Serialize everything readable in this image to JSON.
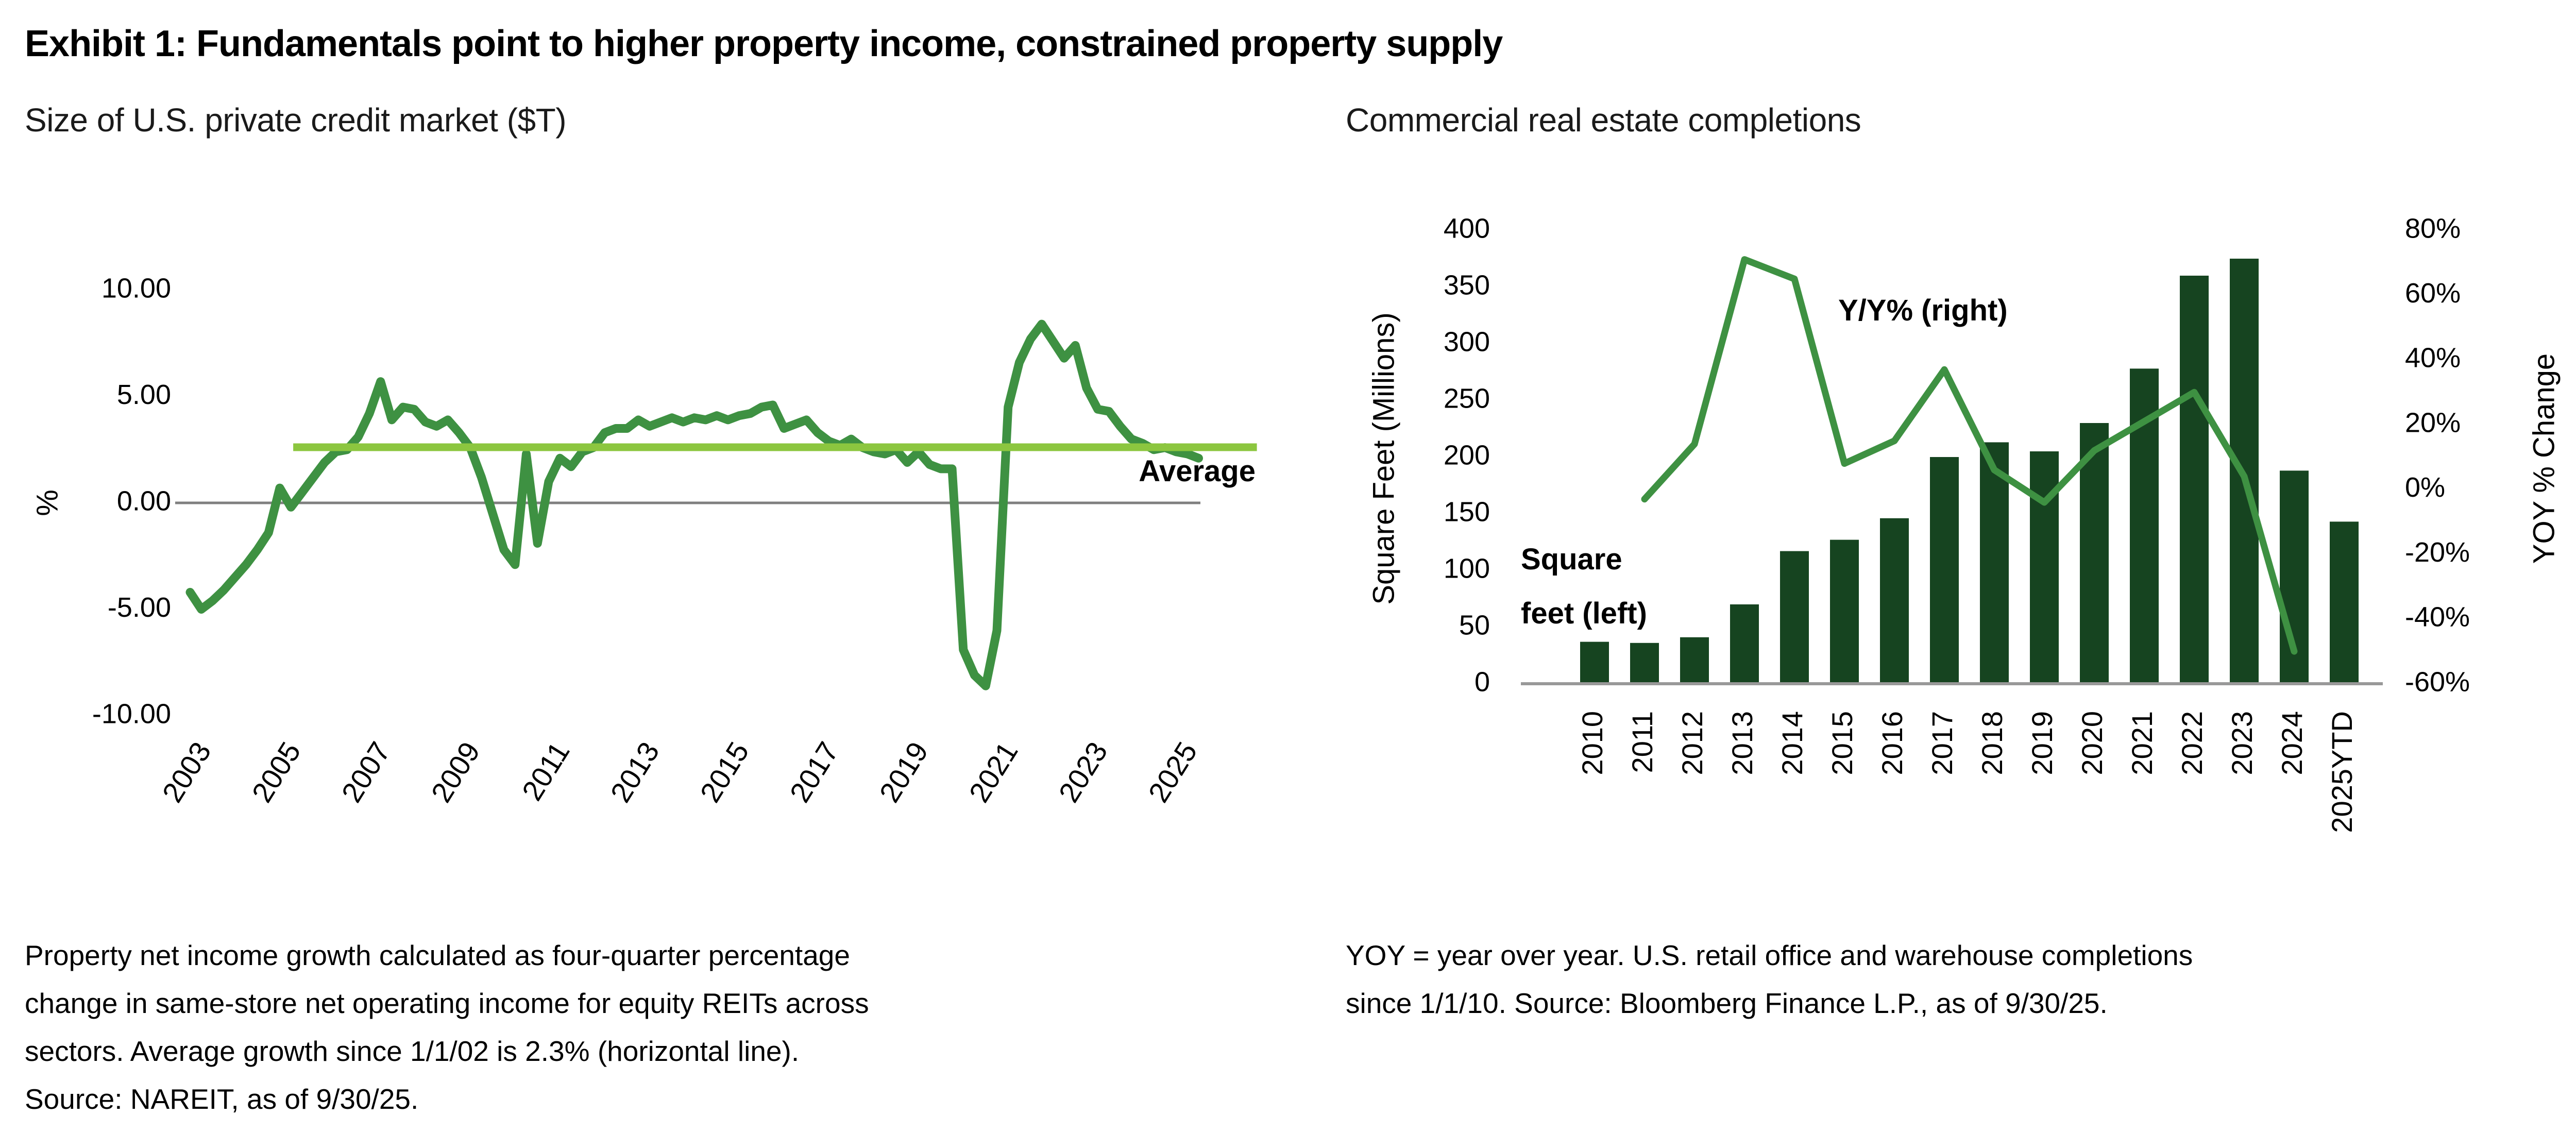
{
  "title": "Exhibit 1: Fundamentals point to higher property income, constrained property supply",
  "left_chart": {
    "subtitle": "Size of U.S. private credit market ($T)"
  },
  "right_chart": {
    "subtitle": "Commercial real estate completions"
  },
  "footnotes": {
    "left": [
      "Property net income growth calculated as four-quarter percentage",
      "change in same-store net operating income for equity REITs across",
      "sectors. Average growth since 1/1/02 is 2.3% (horizontal line).",
      "Source: NAREIT, as of 9/30/25."
    ],
    "right": [
      "YOY = year over year. U.S. retail office and warehouse completions",
      "since 1/1/10. Source: Bloomberg Finance L.P., as of 9/30/25."
    ]
  },
  "chart_data": [
    {
      "type": "line",
      "title": "Size of U.S. private credit market ($T)",
      "ylabel": "%",
      "ylim": [
        -10,
        10
      ],
      "grid": false,
      "y_ticks": {
        "labels": [
          "10.00",
          "5.00",
          "0.00",
          "-5.00",
          "-10.00"
        ],
        "values": [
          10,
          5,
          0,
          -5,
          -10
        ]
      },
      "x_ticks": [
        2003,
        2005,
        2007,
        2009,
        2011,
        2013,
        2015,
        2017,
        2019,
        2021,
        2023,
        2025
      ],
      "x_start": 2003.0,
      "x_step_years": 0.25,
      "zero_line": true,
      "series": [
        {
          "name": "Property net income growth (four-quarter % change, equity REITs)",
          "values": [
            -4.2,
            -5.0,
            -4.6,
            -4.1,
            -3.5,
            -2.9,
            -2.2,
            -1.4,
            0.7,
            -0.2,
            0.5,
            1.2,
            1.9,
            2.4,
            2.5,
            3.1,
            4.2,
            5.7,
            3.9,
            4.5,
            4.4,
            3.8,
            3.6,
            3.9,
            3.3,
            2.6,
            1.2,
            -0.5,
            -2.2,
            -2.9,
            2.3,
            -1.9,
            1.0,
            2.1,
            1.7,
            2.4,
            2.6,
            3.3,
            3.5,
            3.5,
            3.9,
            3.6,
            3.8,
            4.0,
            3.8,
            4.0,
            3.9,
            4.1,
            3.9,
            4.1,
            4.2,
            4.5,
            4.6,
            3.5,
            3.7,
            3.9,
            3.3,
            2.9,
            2.7,
            3.0,
            2.6,
            2.4,
            2.3,
            2.5,
            1.9,
            2.4,
            1.8,
            1.6,
            1.6,
            -6.9,
            -8.1,
            -8.6,
            -6.0,
            4.5,
            6.6,
            7.7,
            8.4,
            7.6,
            6.8,
            7.4,
            5.4,
            4.4,
            4.3,
            3.6,
            3.0,
            2.8,
            2.5,
            2.6,
            2.4,
            2.3,
            2.1
          ]
        }
      ],
      "average_line": {
        "label": "Average",
        "value": 2.3,
        "x_range_years": [
          2005.3,
          2026.8
        ]
      },
      "colors": {
        "line": "#3e9142",
        "average": "#8cc63f",
        "zero_line": "#7f7f7f"
      }
    },
    {
      "type": "bar",
      "title": "Commercial real estate completions",
      "categories": [
        "2010",
        "2011",
        "2012",
        "2013",
        "2014",
        "2015",
        "2016",
        "2017",
        "2018",
        "2019",
        "2020",
        "2021",
        "2022",
        "2023",
        "2024",
        "2025YTD"
      ],
      "series": [
        {
          "name": "Square feet (left)",
          "type": "bar",
          "axis": "left",
          "values": [
            37,
            36,
            41,
            70,
            117,
            127,
            146,
            200,
            213,
            205,
            230,
            278,
            360,
            375,
            188,
            143
          ]
        },
        {
          "name": "Y/Y% (right)",
          "type": "line",
          "axis": "right",
          "categories": [
            "2011",
            "2012",
            "2013",
            "2014",
            "2015",
            "2016",
            "2017",
            "2018",
            "2019",
            "2020",
            "2021",
            "2022",
            "2023",
            "2024"
          ],
          "values": [
            -3,
            14,
            71,
            65,
            8,
            15,
            37,
            6,
            -4,
            12,
            21,
            30,
            4,
            -50
          ]
        }
      ],
      "left_axis": {
        "label": "Square Feet (Millions)",
        "lim": [
          0,
          400
        ],
        "tick_labels": [
          "400",
          "350",
          "300",
          "250",
          "200",
          "150",
          "100",
          "50",
          "0"
        ],
        "tick_values": [
          400,
          350,
          300,
          250,
          200,
          150,
          100,
          50,
          0
        ]
      },
      "right_axis": {
        "label": "YOY % Change",
        "lim": [
          -60,
          80
        ],
        "tick_labels": [
          "80%",
          "60%",
          "40%",
          "20%",
          "0%",
          "-20%",
          "-40%",
          "-60%"
        ],
        "tick_values": [
          80,
          60,
          40,
          20,
          0,
          -20,
          -40,
          -60
        ]
      },
      "annotations": {
        "bar_label_line1": "Square",
        "bar_label_line2": "feet (left)",
        "line_label": "Y/Y% (right)"
      },
      "colors": {
        "bar": "#164420",
        "line": "#3e9142",
        "baseline": "#999999"
      }
    }
  ]
}
